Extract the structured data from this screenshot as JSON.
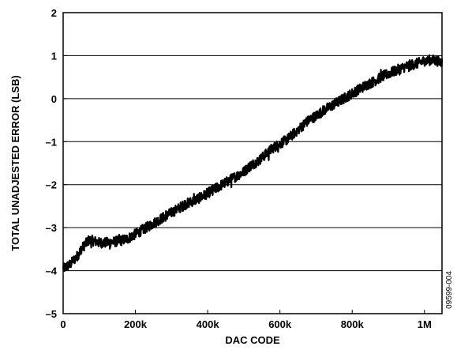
{
  "chart_data": {
    "type": "line",
    "title": "",
    "xlabel": "DAC CODE",
    "ylabel": "TOTAL UNADJESTED ERROR (LSB)",
    "figure_id": "09599-004",
    "xlim": [
      0,
      1048575
    ],
    "ylim": [
      -5,
      2
    ],
    "x_ticks": [
      0,
      200000,
      400000,
      600000,
      800000,
      1000000
    ],
    "x_tick_labels": [
      "0",
      "200k",
      "400k",
      "600k",
      "800k",
      "1M"
    ],
    "y_ticks": [
      -5,
      -4,
      -3,
      -2,
      -1,
      0,
      1,
      2
    ],
    "y_tick_labels": [
      "–5",
      "–4",
      "–3",
      "–2",
      "–1",
      "0",
      "1",
      "2"
    ],
    "grid": "horizontal",
    "series": [
      {
        "color": "#000000",
        "x": [
          0,
          10000,
          20000,
          30000,
          40000,
          50000,
          60000,
          70000,
          80000,
          90000,
          100000,
          120000,
          140000,
          160000,
          180000,
          200000,
          220000,
          240000,
          260000,
          280000,
          300000,
          320000,
          340000,
          360000,
          380000,
          400000,
          420000,
          440000,
          460000,
          480000,
          500000,
          520000,
          540000,
          560000,
          580000,
          600000,
          620000,
          640000,
          660000,
          680000,
          700000,
          720000,
          740000,
          760000,
          780000,
          800000,
          820000,
          840000,
          860000,
          880000,
          900000,
          920000,
          940000,
          960000,
          980000,
          1000000,
          1020000,
          1040000,
          1048575
        ],
        "y": [
          -3.95,
          -3.9,
          -3.85,
          -3.75,
          -3.65,
          -3.5,
          -3.4,
          -3.3,
          -3.3,
          -3.32,
          -3.35,
          -3.35,
          -3.33,
          -3.3,
          -3.25,
          -3.15,
          -3.05,
          -2.95,
          -2.85,
          -2.75,
          -2.65,
          -2.55,
          -2.45,
          -2.38,
          -2.3,
          -2.2,
          -2.1,
          -2.0,
          -1.9,
          -1.8,
          -1.7,
          -1.55,
          -1.45,
          -1.3,
          -1.15,
          -1.05,
          -0.95,
          -0.8,
          -0.65,
          -0.5,
          -0.4,
          -0.28,
          -0.18,
          -0.08,
          0.02,
          0.12,
          0.22,
          0.32,
          0.4,
          0.5,
          0.58,
          0.65,
          0.72,
          0.78,
          0.82,
          0.88,
          0.9,
          0.87,
          0.85
        ],
        "noise_band": 0.12
      }
    ]
  }
}
